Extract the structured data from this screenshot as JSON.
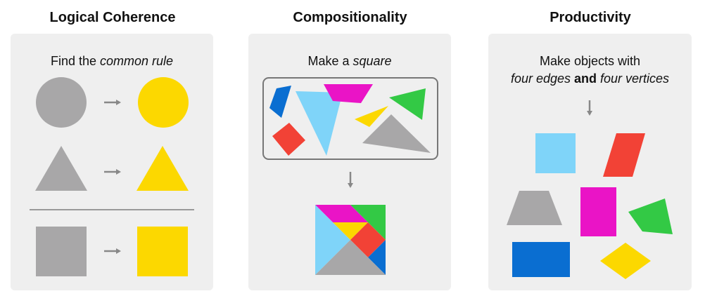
{
  "colors": {
    "panel": "#efefef",
    "gray": "#a8a7a8",
    "yellow": "#fcd800",
    "cyan": "#7fd4f9",
    "red": "#f24236",
    "magenta": "#ea14c6",
    "green": "#33c945",
    "blue": "#0a6ed1",
    "arrow": "#888888"
  },
  "panels": [
    {
      "title": "Logical Coherence",
      "caption": {
        "plain": "Find the ",
        "italic": "common rule"
      }
    },
    {
      "title": "Compositionality",
      "caption": {
        "plain": "Make a ",
        "italic": "square"
      }
    },
    {
      "title": "Productivity",
      "caption": {
        "line1": "Make objects with",
        "italic1": "four edges",
        "bold_mid": " and ",
        "italic2": "four vertices"
      }
    }
  ]
}
